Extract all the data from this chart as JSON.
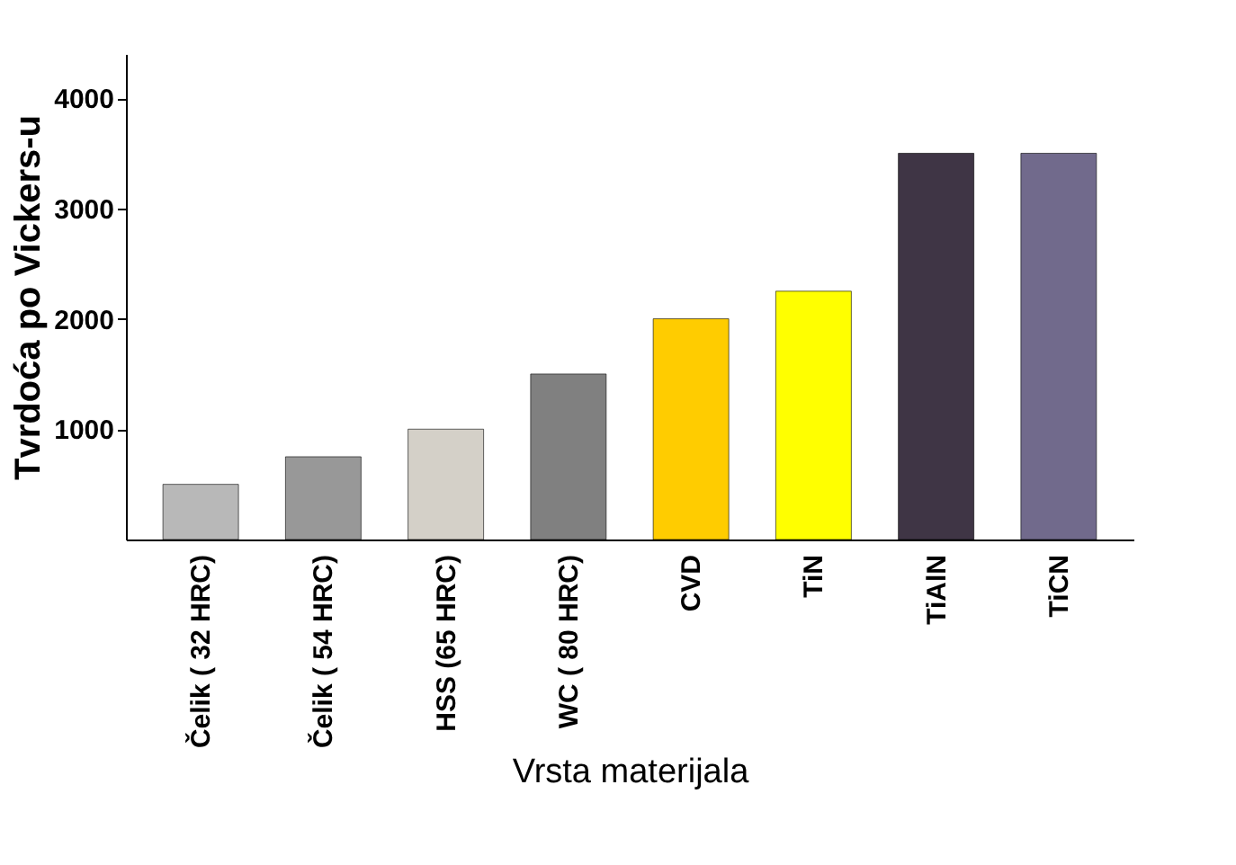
{
  "chart_data": {
    "type": "bar",
    "xlabel": "Vrsta materijala",
    "ylabel": "Tvrdoća po Vickers-u",
    "categories": [
      "Čelik ( 32 HRC)",
      "Čelik ( 54 HRC)",
      "HSS (65 HRC)",
      "WC ( 80 HRC)",
      "CVD",
      "TiN",
      "TiAlN",
      "TiCN"
    ],
    "values": [
      500,
      750,
      1000,
      1500,
      2000,
      2250,
      3500,
      3500
    ],
    "colors": [
      "#b8b8b8",
      "#989898",
      "#d4d0c8",
      "#808080",
      "#ffcc00",
      "#ffff00",
      "#3f3545",
      "#716a8c"
    ],
    "ylim": [
      0,
      4400
    ],
    "yticks": [
      1000,
      2000,
      3000,
      4000
    ],
    "grid": false
  }
}
